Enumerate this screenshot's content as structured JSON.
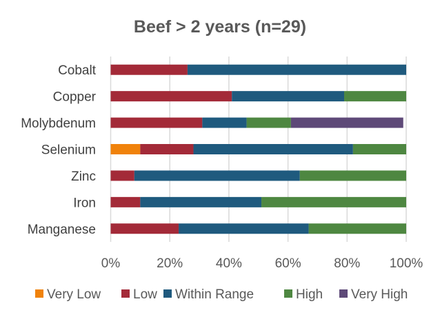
{
  "chart_data": {
    "type": "bar",
    "orientation": "horizontal",
    "stacked": true,
    "title": "Beef > 2 years (n=29)",
    "xlabel": "",
    "ylabel": "",
    "xlim": [
      0,
      100
    ],
    "x_ticks": [
      "0%",
      "20%",
      "40%",
      "60%",
      "80%",
      "100%"
    ],
    "grid": true,
    "legend_position": "bottom",
    "categories": [
      "Cobalt",
      "Copper",
      "Molybdenum",
      "Selenium",
      "Zinc",
      "Iron",
      "Manganese"
    ],
    "series": [
      {
        "name": "Very Low",
        "color": "#F0820B",
        "values": [
          0,
          0,
          0,
          10,
          0,
          0,
          0
        ]
      },
      {
        "name": "Low",
        "color": "#A32A38",
        "values": [
          26,
          41,
          31,
          18,
          8,
          10,
          23
        ]
      },
      {
        "name": "Within Range",
        "color": "#1F5A7E",
        "values": [
          74,
          38,
          15,
          54,
          56,
          41,
          44
        ]
      },
      {
        "name": "High",
        "color": "#4E8741",
        "values": [
          0,
          21,
          15,
          18,
          36,
          49,
          33
        ]
      },
      {
        "name": "Very High",
        "color": "#5E4978",
        "values": [
          0,
          0,
          38,
          0,
          0,
          0,
          0
        ]
      }
    ]
  }
}
